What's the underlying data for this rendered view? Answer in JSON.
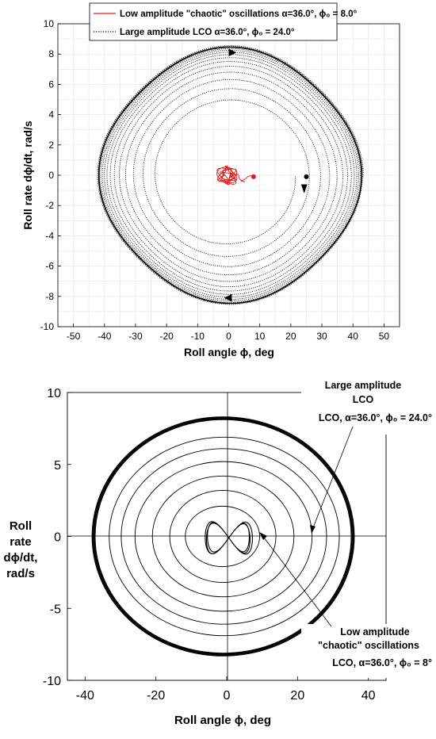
{
  "chart_data": [
    {
      "type": "line",
      "xlabel": "Roll angle ϕ, deg",
      "ylabel": "Roll rate dϕ/dt, rad/s",
      "xlim": [
        -55,
        55
      ],
      "ylim": [
        -10,
        10
      ],
      "xticks": [
        -50,
        -40,
        -30,
        -20,
        -10,
        0,
        10,
        20,
        30,
        40,
        50
      ],
      "yticks": [
        -10,
        -8,
        -6,
        -4,
        -2,
        0,
        2,
        4,
        6,
        8,
        10
      ],
      "grid": true,
      "legend_position": "top-center",
      "legend": [
        "Low amplitude \"chaotic\" oscillations α=36.0°, ϕ₀ = 8.0°",
        "Large amplitude LCO α=36.0°, ϕ₀ = 24.0°"
      ],
      "series": [
        {
          "name": "Low amplitude \"chaotic\" oscillations α=36.0°, ϕ₀ = 8.0°",
          "color": "#e31a1c",
          "style": "solid",
          "start": [
            8,
            -0.1
          ],
          "orbit_center": [
            0,
            0
          ],
          "x_range": [
            -4,
            8
          ],
          "y_range": [
            -1.2,
            0.6
          ]
        },
        {
          "name": "Large amplitude LCO α=36.0°, ϕ₀ = 24.0°",
          "color": "#000000",
          "style": "dotted",
          "start": [
            25,
            -0.1
          ],
          "inner_radius": [
            21.5,
            4.3
          ],
          "limit_cycle": {
            "x_range": [
              -40,
              41
            ],
            "y_range": [
              -8.1,
              8.1
            ]
          }
        }
      ]
    },
    {
      "type": "line",
      "xlabel": "Roll angle ϕ, deg",
      "ylabel": "Roll rate dϕ/dt, rad/s",
      "xlim": [
        -45,
        45
      ],
      "ylim": [
        -10,
        10
      ],
      "xticks": [
        -40,
        -20,
        0,
        20,
        40
      ],
      "yticks": [
        -10,
        -5,
        0,
        5,
        10
      ],
      "grid": false,
      "annotations": [
        {
          "lines": [
            "Large amplitude",
            "LCO",
            "LCO, α=36.0°, ϕ₀ = 24.0°"
          ],
          "points_to": [
            24,
            0
          ]
        },
        {
          "lines": [
            "Low amplitude",
            "\"chaotic\" oscillations",
            "LCO, α=36.0°, ϕ₀ = 8°"
          ],
          "points_to": [
            9,
            0
          ]
        }
      ],
      "series": [
        {
          "name": "",
          "color": "#000000",
          "limit_cycle": {
            "x_range": [
              -38,
              36
            ],
            "y_range": [
              -8.3,
              8.3
            ]
          },
          "transient_radii": [
            [
              10.5,
              2.1
            ],
            [
              15,
              3.2
            ],
            [
              20,
              4.2
            ],
            [
              25,
              5.2
            ],
            [
              29,
              6.1
            ],
            [
              32.5,
              6.9
            ]
          ],
          "small_orbit": {
            "x_range": [
              -7,
              8
            ],
            "y_range": [
              -1.3,
              1.1
            ]
          }
        }
      ]
    }
  ]
}
